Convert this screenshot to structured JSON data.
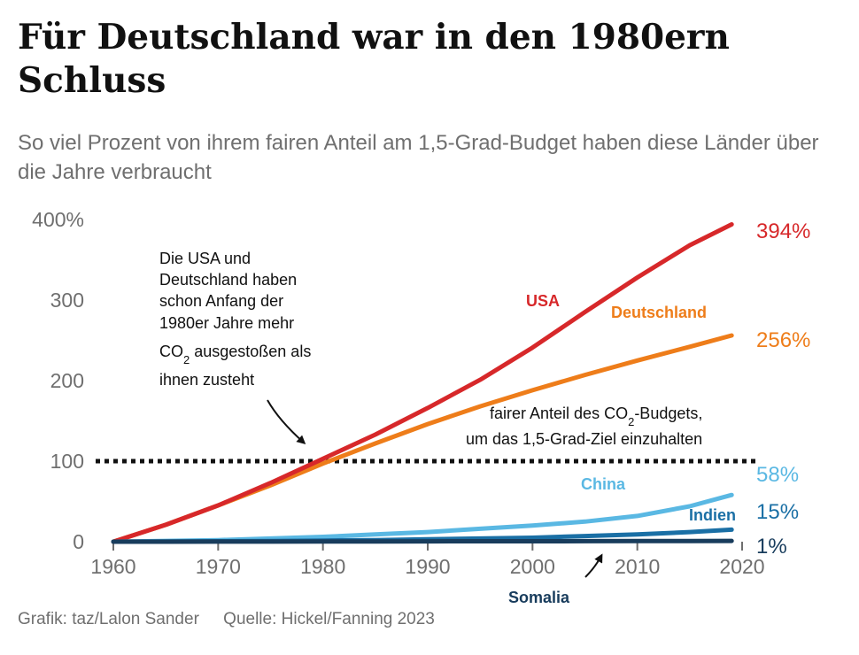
{
  "title": "Für Deutschland war in den 1980ern Schluss",
  "subtitle": "So viel Prozent von ihrem fairen Anteil am 1,5-Grad-Budget haben diese Länder über die Jahre verbraucht",
  "footer": {
    "credit": "Grafik: taz/Lalon Sander",
    "source": "Quelle: Hickel/Fanning 2023"
  },
  "colors": {
    "usa": "#d7282a",
    "deutschland": "#ee7d1a",
    "china": "#5ab8e3",
    "indien": "#1a6fa5",
    "somalia": "#183c5c",
    "axis": "#6f6f6f",
    "text": "#111111"
  },
  "chart_data": {
    "type": "line",
    "title": "Für Deutschland war in den 1980ern Schluss",
    "xlabel": "",
    "ylabel": "",
    "xlim": [
      1960,
      2020
    ],
    "ylim": [
      0,
      400
    ],
    "xticks": [
      1960,
      1970,
      1980,
      1990,
      2000,
      2010,
      2020
    ],
    "yticks": [
      {
        "value": 0,
        "label": "0"
      },
      {
        "value": 100,
        "label": "100"
      },
      {
        "value": 200,
        "label": "200"
      },
      {
        "value": 300,
        "label": "300"
      },
      {
        "value": 400,
        "label": "400%"
      }
    ],
    "x": [
      1960,
      1965,
      1970,
      1975,
      1980,
      1985,
      1990,
      1995,
      2000,
      2005,
      2010,
      2015,
      2019
    ],
    "series": [
      {
        "name": "USA",
        "key": "usa",
        "end_label": "394%",
        "values": [
          0,
          21,
          45,
          73,
          103,
          133,
          166,
          201,
          241,
          285,
          328,
          368,
          394
        ]
      },
      {
        "name": "Deutschland",
        "key": "deutschland",
        "end_label": "256%",
        "values": [
          0,
          21,
          45,
          70,
          97,
          122,
          146,
          168,
          188,
          207,
          225,
          242,
          256
        ]
      },
      {
        "name": "China",
        "key": "china",
        "end_label": "58%",
        "values": [
          0,
          1,
          2,
          4,
          6,
          9,
          12,
          16,
          20,
          25,
          32,
          44,
          58
        ]
      },
      {
        "name": "Indien",
        "key": "indien",
        "end_label": "15%",
        "values": [
          0,
          0.2,
          0.5,
          0.9,
          1.4,
          2,
          3,
          4,
          5,
          7,
          9,
          12,
          15
        ]
      },
      {
        "name": "Somalia",
        "key": "somalia",
        "end_label": "1%",
        "values": [
          0,
          0,
          0.1,
          0.1,
          0.2,
          0.3,
          0.4,
          0.5,
          0.6,
          0.7,
          0.8,
          0.9,
          1
        ]
      }
    ],
    "reference_line": {
      "value": 100,
      "label_line1": "fairer Anteil des CO",
      "label_sub": "2",
      "label_line2_suffix": "-Budgets,",
      "label_line3": "um das 1,5-Grad-Ziel einzuhalten"
    },
    "annotation": {
      "lines": [
        "Die USA und",
        "Deutschland haben",
        "schon Anfang der",
        "1980er Jahre mehr"
      ],
      "co2_prefix": "CO",
      "co2_sub": "2",
      "co2_suffix": " ausgestoßen als",
      "last_line": "ihnen zusteht"
    }
  }
}
